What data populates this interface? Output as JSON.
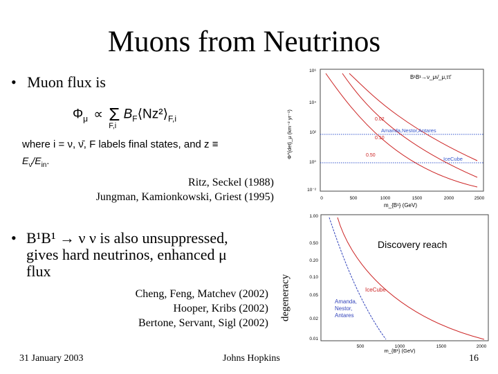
{
  "slide": {
    "title": "Muons from Neutrinos",
    "bullet1": "Muon flux is",
    "formula": {
      "lhs": "Φ",
      "lhs_sub": "μ",
      "propto": "∝",
      "sum_sub": "F,i",
      "rhs": "B",
      "rhs_sub": "F",
      "bracket": "⟨Nz²⟩",
      "bracket_sub": "F,i",
      "where_line": "where  i = ν, ν̄,  F  labels final states,  and  z ≡",
      "ratio": "E",
      "ratio_sub": "ν",
      "ratio_slash": "/E",
      "ratio_sub2": "in",
      "ratio_dot": "."
    },
    "refs1": [
      "Ritz, Seckel (1988)",
      "Jungman, Kamionkowski, Griest (1995)"
    ],
    "bullet2_line1": "B¹B¹ → ν ν is also unsuppressed,",
    "bullet2_line2": "gives hard neutrinos, enhanced μ",
    "bullet2_line3": "flux",
    "refs2": [
      "Cheng, Feng, Matchev (2002)",
      "Hooper, Kribs (2002)",
      "Bertone, Servant, Sigl (2002)"
    ],
    "footer": {
      "date": "31 January 2003",
      "venue": "Johns Hopkins",
      "page": "16"
    }
  },
  "plot1": {
    "channel_label": "B¹B¹→ν_μν̄_μ,ττ̄",
    "curve_labels": [
      "0.02",
      "0.10",
      "0.50"
    ],
    "detector_labels": [
      "Amanda,Nestor,Antares",
      "IceCube"
    ],
    "ylabel": "Φ^{det}_μ (km⁻² yr⁻¹)",
    "xlabel": "m_{B¹} (GeV)",
    "y_ticks": [
      "10⁶",
      "10⁴",
      "10²",
      "10⁰",
      "10⁻²"
    ],
    "x_ticks": [
      "0",
      "500",
      "1000",
      "1500",
      "2000",
      "2500"
    ],
    "colors": {
      "curve": "#cc2222",
      "amanda": "#3355cc",
      "icecube": "#3355cc"
    }
  },
  "plot2": {
    "ylabel": "degeneracy",
    "annotation": "Discovery reach",
    "xlabel": "m_{B¹} (GeV)",
    "y_ticks": [
      "1.00",
      "0.50",
      "0.20",
      "0.10",
      "0.05",
      "0.02",
      "0.01"
    ],
    "x_ticks": [
      "500",
      "1000",
      "1500",
      "2000"
    ],
    "region_labels": [
      "IceCube",
      "Amanda,\nNestor,\nAntares"
    ],
    "colors": {
      "icecube": "#cc2222",
      "amanda": "#3344bb"
    }
  }
}
